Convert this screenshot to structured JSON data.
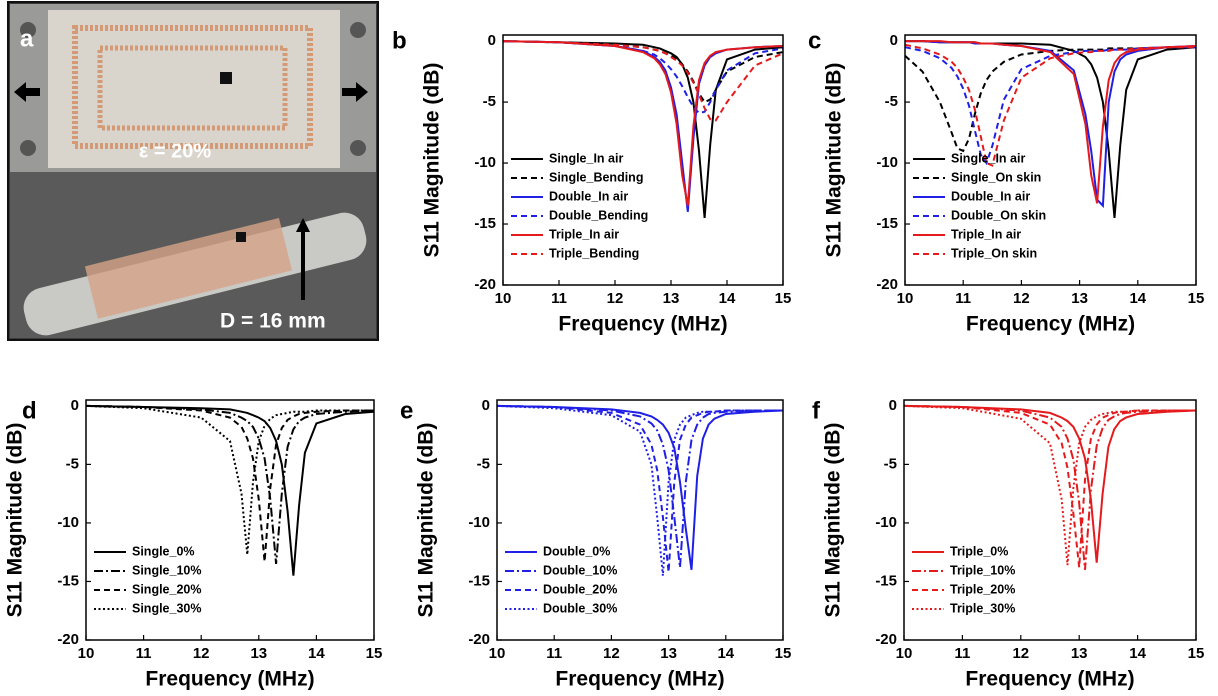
{
  "photo": {
    "label": "a",
    "strain": "ε = 20%",
    "diameter": "D = 16 mm"
  },
  "chart_data": [
    {
      "type": "line",
      "panel": "b",
      "xlabel": "Frequency (MHz)",
      "ylabel": "S11 Magnitude (dB)",
      "xlim": [
        10,
        15
      ],
      "ylim": [
        -20,
        0.5
      ],
      "xticks": [
        10,
        11,
        12,
        13,
        14,
        15
      ],
      "yticks": [
        -20,
        -15,
        -10,
        -5,
        0
      ],
      "legend": "lower left",
      "x": [
        10,
        11,
        12,
        12.5,
        12.7,
        12.8,
        12.9,
        13,
        13.1,
        13.2,
        13.3,
        13.4,
        13.5,
        13.6,
        13.7,
        13.8,
        14,
        14.5,
        15
      ],
      "series": [
        {
          "name": "Single_In air",
          "color": "#000000",
          "style": "solid",
          "values": [
            0,
            -0.1,
            -0.2,
            -0.3,
            -0.5,
            -0.6,
            -0.8,
            -1.0,
            -1.3,
            -1.9,
            -3.0,
            -5.0,
            -9.0,
            -14.5,
            -8.5,
            -4.0,
            -1.5,
            -0.7,
            -0.5
          ]
        },
        {
          "name": "Single_Bending",
          "color": "#000000",
          "style": "dash",
          "values": [
            0,
            -0.1,
            -0.3,
            -0.5,
            -0.7,
            -0.8,
            -1.0,
            -1.2,
            -1.5,
            -1.9,
            -2.5,
            -3.3,
            -4.3,
            -5.0,
            -4.8,
            -4.0,
            -2.5,
            -1.3,
            -0.9
          ]
        },
        {
          "name": "Double_In air",
          "color": "#1f1fe6",
          "style": "solid",
          "values": [
            0,
            -0.1,
            -0.4,
            -0.8,
            -1.3,
            -1.7,
            -2.4,
            -3.8,
            -6.0,
            -10.0,
            -14.0,
            -8.0,
            -3.5,
            -2.0,
            -1.3,
            -1.0,
            -0.7,
            -0.5,
            -0.4
          ]
        },
        {
          "name": "Double_Bending",
          "color": "#1f1fe6",
          "style": "dash",
          "values": [
            0,
            -0.1,
            -0.4,
            -0.8,
            -1.1,
            -1.4,
            -1.8,
            -2.3,
            -2.9,
            -3.7,
            -4.6,
            -5.4,
            -5.9,
            -5.8,
            -5.0,
            -4.0,
            -2.4,
            -1.0,
            -0.6
          ]
        },
        {
          "name": "Triple_In air",
          "color": "#e41a1c",
          "style": "solid",
          "values": [
            0,
            -0.1,
            -0.4,
            -0.9,
            -1.4,
            -1.9,
            -2.7,
            -4.2,
            -6.8,
            -11.0,
            -13.5,
            -7.0,
            -3.2,
            -1.8,
            -1.2,
            -0.9,
            -0.7,
            -0.5,
            -0.4
          ]
        },
        {
          "name": "Triple_Bending",
          "color": "#e41a1c",
          "style": "dash",
          "values": [
            0,
            -0.1,
            -0.3,
            -0.5,
            -0.7,
            -0.8,
            -1.0,
            -1.3,
            -1.6,
            -2.0,
            -2.6,
            -3.4,
            -4.4,
            -5.5,
            -6.4,
            -6.5,
            -5.0,
            -2.0,
            -1.0
          ]
        }
      ]
    },
    {
      "type": "line",
      "panel": "c",
      "xlabel": "Frequency (MHz)",
      "ylabel": "S11 Magnitude (dB)",
      "xlim": [
        10,
        15
      ],
      "ylim": [
        -20,
        0.5
      ],
      "xticks": [
        10,
        11,
        12,
        13,
        14,
        15
      ],
      "yticks": [
        -20,
        -15,
        -10,
        -5,
        0
      ],
      "legend": "lower left",
      "x": [
        10,
        10.3,
        10.6,
        10.8,
        10.9,
        11,
        11.1,
        11.2,
        11.3,
        11.4,
        11.5,
        11.7,
        12,
        12.5,
        12.9,
        13.1,
        13.2,
        13.3,
        13.4,
        13.5,
        13.6,
        13.7,
        13.8,
        14,
        14.5,
        15
      ],
      "series": [
        {
          "name": "Single_In air",
          "color": "#000000",
          "style": "solid",
          "values": [
            0,
            0,
            -0.1,
            -0.1,
            -0.1,
            -0.1,
            -0.1,
            -0.1,
            -0.2,
            -0.2,
            -0.2,
            -0.2,
            -0.2,
            -0.3,
            -0.8,
            -1.3,
            -1.9,
            -3.0,
            -5.0,
            -9.0,
            -14.5,
            -8.5,
            -4.0,
            -1.5,
            -0.7,
            -0.5
          ]
        },
        {
          "name": "Single_On skin",
          "color": "#000000",
          "style": "dash",
          "values": [
            -1.2,
            -2.5,
            -5.0,
            -7.5,
            -8.8,
            -9.0,
            -8.0,
            -6.0,
            -4.3,
            -3.2,
            -2.5,
            -1.7,
            -1.1,
            -0.8,
            -0.7,
            -0.7,
            -0.7,
            -0.7,
            -0.7,
            -0.6,
            -0.6,
            -0.6,
            -0.6,
            -0.6,
            -0.5,
            -0.5
          ]
        },
        {
          "name": "Double_In air",
          "color": "#1f1fe6",
          "style": "solid",
          "values": [
            0,
            0,
            -0.1,
            -0.1,
            -0.1,
            -0.1,
            -0.1,
            -0.2,
            -0.2,
            -0.2,
            -0.2,
            -0.3,
            -0.4,
            -0.8,
            -2.4,
            -6.0,
            -9.0,
            -13.0,
            -13.5,
            -5.0,
            -2.5,
            -1.5,
            -1.1,
            -0.8,
            -0.5,
            -0.4
          ]
        },
        {
          "name": "Double_On skin",
          "color": "#1f1fe6",
          "style": "dash",
          "values": [
            -0.5,
            -0.8,
            -1.4,
            -2.2,
            -2.9,
            -3.9,
            -5.3,
            -7.3,
            -9.3,
            -10.0,
            -8.6,
            -4.8,
            -2.3,
            -1.2,
            -0.9,
            -0.8,
            -0.8,
            -0.8,
            -0.8,
            -0.7,
            -0.7,
            -0.7,
            -0.7,
            -0.6,
            -0.5,
            -0.5
          ]
        },
        {
          "name": "Triple_In air",
          "color": "#e41a1c",
          "style": "solid",
          "values": [
            0,
            0,
            0,
            -0.1,
            -0.1,
            -0.1,
            -0.1,
            -0.1,
            -0.2,
            -0.2,
            -0.2,
            -0.3,
            -0.4,
            -0.9,
            -2.7,
            -6.8,
            -11.0,
            -13.3,
            -7.0,
            -3.2,
            -1.8,
            -1.2,
            -0.9,
            -0.7,
            -0.5,
            -0.4
          ]
        },
        {
          "name": "Triple_On skin",
          "color": "#e41a1c",
          "style": "dash",
          "values": [
            -0.3,
            -0.6,
            -1.1,
            -1.7,
            -2.2,
            -3.0,
            -4.0,
            -5.6,
            -7.8,
            -10.0,
            -10.2,
            -6.5,
            -3.0,
            -1.4,
            -1.0,
            -0.9,
            -0.9,
            -0.8,
            -0.8,
            -0.8,
            -0.7,
            -0.7,
            -0.7,
            -0.6,
            -0.5,
            -0.5
          ]
        }
      ]
    },
    {
      "type": "line",
      "panel": "d",
      "xlabel": "Frequency (MHz)",
      "ylabel": "S11 Magnitude (dB)",
      "xlim": [
        10,
        15
      ],
      "ylim": [
        -20,
        0.5
      ],
      "xticks": [
        10,
        11,
        12,
        13,
        14,
        15
      ],
      "yticks": [
        -20,
        -15,
        -10,
        -5,
        0
      ],
      "legend": "lower left",
      "x": [
        10,
        11,
        12,
        12.5,
        12.7,
        12.8,
        12.9,
        13,
        13.1,
        13.2,
        13.3,
        13.4,
        13.5,
        13.6,
        13.7,
        13.8,
        14,
        14.5,
        15
      ],
      "series": [
        {
          "name": "Single_0%",
          "color": "#000000",
          "style": "solid",
          "values": [
            0,
            -0.1,
            -0.2,
            -0.3,
            -0.5,
            -0.6,
            -0.8,
            -1.0,
            -1.3,
            -1.9,
            -3.0,
            -5.0,
            -9.0,
            -14.5,
            -8.5,
            -4.0,
            -1.5,
            -0.7,
            -0.5
          ]
        },
        {
          "name": "Single_10%",
          "color": "#000000",
          "style": "dashdot",
          "values": [
            0,
            -0.1,
            -0.3,
            -0.6,
            -1.0,
            -1.3,
            -1.8,
            -2.8,
            -4.5,
            -8.0,
            -13.5,
            -7.5,
            -3.5,
            -2.0,
            -1.3,
            -1.0,
            -0.7,
            -0.5,
            -0.4
          ]
        },
        {
          "name": "Single_20%",
          "color": "#000000",
          "style": "dash",
          "values": [
            0,
            -0.1,
            -0.4,
            -1.0,
            -1.8,
            -2.8,
            -4.5,
            -8.0,
            -13.3,
            -7.0,
            -3.3,
            -1.9,
            -1.2,
            -0.9,
            -0.7,
            -0.6,
            -0.5,
            -0.4,
            -0.4
          ]
        },
        {
          "name": "Single_30%",
          "color": "#000000",
          "style": "dot",
          "values": [
            0,
            -0.2,
            -1.0,
            -3.0,
            -7.5,
            -12.7,
            -6.5,
            -3.0,
            -1.7,
            -1.1,
            -0.8,
            -0.7,
            -0.6,
            -0.5,
            -0.5,
            -0.5,
            -0.4,
            -0.4,
            -0.4
          ]
        }
      ]
    },
    {
      "type": "line",
      "panel": "e",
      "xlabel": "Frequency (MHz)",
      "ylabel": "S11 Magnitude (dB)",
      "xlim": [
        10,
        15
      ],
      "ylim": [
        -20,
        0.5
      ],
      "xticks": [
        10,
        11,
        12,
        13,
        14,
        15
      ],
      "yticks": [
        -20,
        -15,
        -10,
        -5,
        0
      ],
      "legend": "lower left",
      "x": [
        10,
        11,
        12,
        12.5,
        12.7,
        12.8,
        12.9,
        13,
        13.1,
        13.2,
        13.3,
        13.4,
        13.5,
        13.6,
        13.7,
        13.8,
        14,
        14.5,
        15
      ],
      "series": [
        {
          "name": "Double_0%",
          "color": "#1f1fe6",
          "style": "solid",
          "values": [
            0,
            -0.1,
            -0.3,
            -0.6,
            -0.9,
            -1.2,
            -1.6,
            -2.3,
            -3.6,
            -6.5,
            -10.5,
            -14.0,
            -6.0,
            -2.8,
            -1.6,
            -1.1,
            -0.7,
            -0.5,
            -0.4
          ]
        },
        {
          "name": "Double_10%",
          "color": "#1f1fe6",
          "style": "dashdot",
          "values": [
            0,
            -0.1,
            -0.4,
            -0.9,
            -1.5,
            -2.1,
            -3.3,
            -5.5,
            -9.5,
            -13.8,
            -6.5,
            -2.9,
            -1.6,
            -1.0,
            -0.7,
            -0.6,
            -0.5,
            -0.4,
            -0.4
          ]
        },
        {
          "name": "Double_20%",
          "color": "#1f1fe6",
          "style": "dash",
          "values": [
            0,
            -0.1,
            -0.6,
            -1.6,
            -3.3,
            -5.5,
            -9.5,
            -14.2,
            -6.5,
            -2.9,
            -1.6,
            -1.0,
            -0.8,
            -0.6,
            -0.5,
            -0.5,
            -0.4,
            -0.4,
            -0.4
          ]
        },
        {
          "name": "Double_30%",
          "color": "#1f1fe6",
          "style": "dot",
          "values": [
            0,
            -0.2,
            -0.8,
            -2.2,
            -5.0,
            -9.5,
            -14.5,
            -6.5,
            -2.9,
            -1.6,
            -1.0,
            -0.8,
            -0.6,
            -0.5,
            -0.5,
            -0.5,
            -0.4,
            -0.4,
            -0.4
          ]
        }
      ]
    },
    {
      "type": "line",
      "panel": "f",
      "xlabel": "Frequency (MHz)",
      "ylabel": "S11 Magnitude (dB)",
      "xlim": [
        10,
        15
      ],
      "ylim": [
        -20,
        0.5
      ],
      "xticks": [
        10,
        11,
        12,
        13,
        14,
        15
      ],
      "yticks": [
        -20,
        -15,
        -10,
        -5,
        0
      ],
      "legend": "lower left",
      "x": [
        10,
        11,
        12,
        12.5,
        12.7,
        12.8,
        12.9,
        13,
        13.1,
        13.2,
        13.3,
        13.4,
        13.5,
        13.6,
        13.7,
        13.8,
        14,
        14.5,
        15
      ],
      "series": [
        {
          "name": "Triple_0%",
          "color": "#e41a1c",
          "style": "solid",
          "values": [
            0,
            -0.1,
            -0.3,
            -0.6,
            -1.0,
            -1.3,
            -1.8,
            -2.8,
            -4.5,
            -8.0,
            -13.4,
            -7.5,
            -3.5,
            -2.0,
            -1.3,
            -1.0,
            -0.7,
            -0.5,
            -0.4
          ]
        },
        {
          "name": "Triple_10%",
          "color": "#e41a1c",
          "style": "dashdot",
          "values": [
            0,
            -0.1,
            -0.4,
            -1.0,
            -1.8,
            -2.8,
            -4.6,
            -8.3,
            -14.0,
            -7.2,
            -3.4,
            -1.9,
            -1.2,
            -0.9,
            -0.7,
            -0.6,
            -0.5,
            -0.4,
            -0.4
          ]
        },
        {
          "name": "Triple_20%",
          "color": "#e41a1c",
          "style": "dash",
          "values": [
            0,
            -0.1,
            -0.6,
            -1.6,
            -3.2,
            -5.3,
            -9.2,
            -13.8,
            -6.3,
            -2.8,
            -1.6,
            -1.0,
            -0.8,
            -0.6,
            -0.5,
            -0.5,
            -0.4,
            -0.4,
            -0.4
          ]
        },
        {
          "name": "Triple_30%",
          "color": "#e41a1c",
          "style": "dot",
          "values": [
            0,
            -0.2,
            -1.1,
            -3.2,
            -8.0,
            -13.6,
            -7.0,
            -3.2,
            -1.8,
            -1.2,
            -0.9,
            -0.7,
            -0.6,
            -0.5,
            -0.5,
            -0.5,
            -0.4,
            -0.4,
            -0.4
          ]
        }
      ]
    }
  ]
}
